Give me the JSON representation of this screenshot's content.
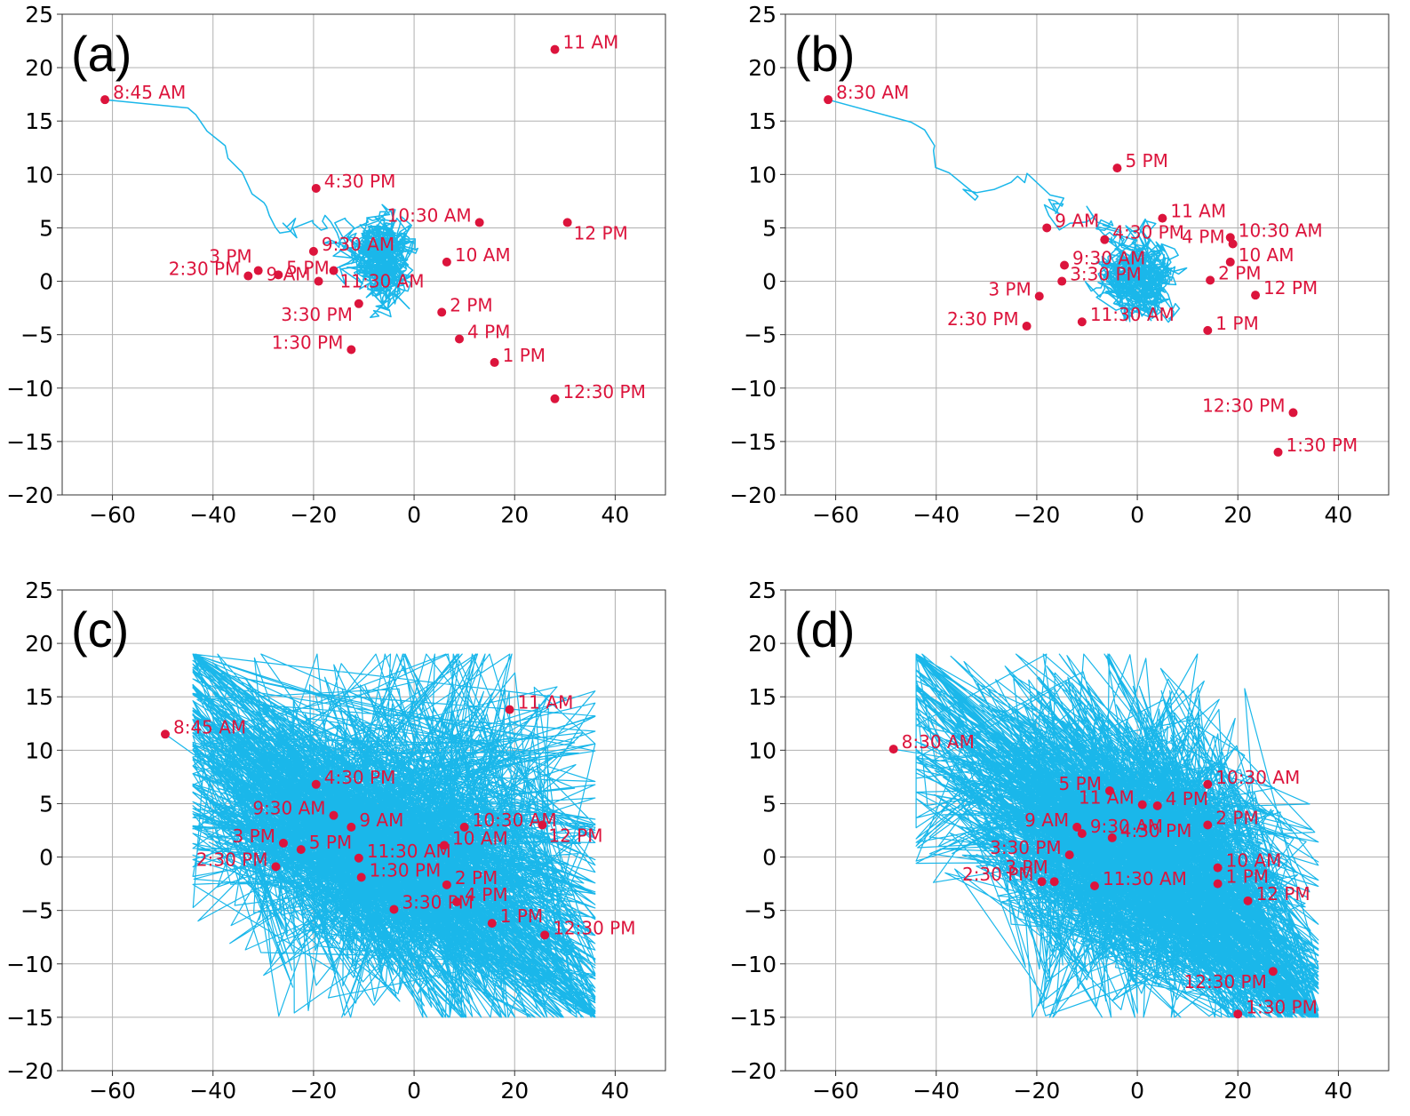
{
  "figure": {
    "colors": {
      "trajectory": "#1ab7ea",
      "points": "#dc143c"
    }
  },
  "chart_data": [
    {
      "type": "line",
      "panel": "(a)",
      "style": "smooth",
      "xlim": [
        -70,
        50
      ],
      "ylim": [
        -20,
        25
      ],
      "xticks": [
        -60,
        -40,
        -20,
        0,
        20,
        40
      ],
      "yticks": [
        -20,
        -15,
        -10,
        -5,
        0,
        5,
        10,
        15,
        20,
        25
      ],
      "xtick_labels": [
        "−60",
        "−40",
        "−20",
        "0",
        "20",
        "40"
      ],
      "ytick_labels": [
        "−20",
        "−15",
        "−10",
        "−5",
        "0",
        "5",
        "10",
        "15",
        "20",
        "25"
      ],
      "grid": true,
      "seed": 11,
      "points": [
        {
          "label": "8:45 AM",
          "x": -61.5,
          "y": 17.0,
          "pos": "right"
        },
        {
          "label": "9 AM",
          "x": -19.0,
          "y": 0.0,
          "pos": "left"
        },
        {
          "label": "9:30 AM",
          "x": -20.0,
          "y": 2.8,
          "pos": "right"
        },
        {
          "label": "10 AM",
          "x": 6.5,
          "y": 1.8,
          "pos": "right"
        },
        {
          "label": "10:30 AM",
          "x": 13.0,
          "y": 5.5,
          "pos": "left"
        },
        {
          "label": "11 AM",
          "x": 28.0,
          "y": 21.7,
          "pos": "right"
        },
        {
          "label": "11:30 AM",
          "x": -16.0,
          "y": 1.0,
          "pos": "below-right"
        },
        {
          "label": "12 PM",
          "x": 30.5,
          "y": 5.5,
          "pos": "below-right"
        },
        {
          "label": "12:30 PM",
          "x": 28.0,
          "y": -11.0,
          "pos": "right"
        },
        {
          "label": "1 PM",
          "x": 16.0,
          "y": -7.6,
          "pos": "right"
        },
        {
          "label": "1:30 PM",
          "x": -12.5,
          "y": -6.4,
          "pos": "left"
        },
        {
          "label": "2 PM",
          "x": 5.5,
          "y": -2.9,
          "pos": "right"
        },
        {
          "label": "2:30 PM",
          "x": -33.0,
          "y": 0.5,
          "pos": "left"
        },
        {
          "label": "3 PM",
          "x": -31.0,
          "y": 1.0,
          "pos": "above-left"
        },
        {
          "label": "3:30 PM",
          "x": -11.0,
          "y": -2.1,
          "pos": "below-left"
        },
        {
          "label": "4 PM",
          "x": 9.0,
          "y": -5.4,
          "pos": "right"
        },
        {
          "label": "4:30 PM",
          "x": -19.5,
          "y": 8.7,
          "pos": "right"
        },
        {
          "label": "5 PM",
          "x": -27.0,
          "y": 0.6,
          "pos": "right"
        }
      ]
    },
    {
      "type": "line",
      "panel": "(b)",
      "style": "smooth",
      "xlim": [
        -70,
        50
      ],
      "ylim": [
        -20,
        25
      ],
      "xticks": [
        -60,
        -40,
        -20,
        0,
        20,
        40
      ],
      "yticks": [
        -20,
        -15,
        -10,
        -5,
        0,
        5,
        10,
        15,
        20,
        25
      ],
      "xtick_labels": [
        "−60",
        "−40",
        "−20",
        "0",
        "20",
        "40"
      ],
      "ytick_labels": [
        "−20",
        "−15",
        "−10",
        "−5",
        "0",
        "5",
        "10",
        "15",
        "20",
        "25"
      ],
      "grid": true,
      "seed": 23,
      "points": [
        {
          "label": "8:30 AM",
          "x": -61.5,
          "y": 17.0,
          "pos": "right"
        },
        {
          "label": "9 AM",
          "x": -18.0,
          "y": 5.0,
          "pos": "right"
        },
        {
          "label": "9:30 AM",
          "x": -14.5,
          "y": 1.5,
          "pos": "right"
        },
        {
          "label": "10 AM",
          "x": 18.5,
          "y": 1.8,
          "pos": "right"
        },
        {
          "label": "10:30 AM",
          "x": 18.5,
          "y": 4.1,
          "pos": "right"
        },
        {
          "label": "11 AM",
          "x": 5.0,
          "y": 5.9,
          "pos": "right"
        },
        {
          "label": "11:30 AM",
          "x": -11.0,
          "y": -3.8,
          "pos": "right"
        },
        {
          "label": "12 PM",
          "x": 23.5,
          "y": -1.3,
          "pos": "right"
        },
        {
          "label": "12:30 PM",
          "x": 31.0,
          "y": -12.3,
          "pos": "left"
        },
        {
          "label": "1 PM",
          "x": 14.0,
          "y": -4.6,
          "pos": "right"
        },
        {
          "label": "1:30 PM",
          "x": 28.0,
          "y": -16.0,
          "pos": "right"
        },
        {
          "label": "2 PM",
          "x": 14.5,
          "y": 0.1,
          "pos": "right"
        },
        {
          "label": "2:30 PM",
          "x": -22.0,
          "y": -4.2,
          "pos": "left"
        },
        {
          "label": "3 PM",
          "x": -19.5,
          "y": -1.4,
          "pos": "left"
        },
        {
          "label": "3:30 PM",
          "x": -15.0,
          "y": 0.0,
          "pos": "right"
        },
        {
          "label": "4 PM",
          "x": 19.0,
          "y": 3.5,
          "pos": "left"
        },
        {
          "label": "4:30 PM",
          "x": -6.5,
          "y": 3.9,
          "pos": "right"
        },
        {
          "label": "5 PM",
          "x": -4.0,
          "y": 10.6,
          "pos": "right"
        }
      ]
    },
    {
      "type": "line",
      "panel": "(c)",
      "style": "zigzag",
      "xlim": [
        -70,
        50
      ],
      "ylim": [
        -20,
        25
      ],
      "xticks": [
        -60,
        -40,
        -20,
        0,
        20,
        40
      ],
      "yticks": [
        -20,
        -15,
        -10,
        -5,
        0,
        5,
        10,
        15,
        20,
        25
      ],
      "xtick_labels": [
        "−60",
        "−40",
        "−20",
        "0",
        "20",
        "40"
      ],
      "ytick_labels": [
        "−20",
        "−15",
        "−10",
        "−5",
        "0",
        "5",
        "10",
        "15",
        "20",
        "25"
      ],
      "grid": true,
      "seed": 37,
      "points": [
        {
          "label": "8:45 AM",
          "x": -49.5,
          "y": 11.5,
          "pos": "right"
        },
        {
          "label": "9 AM",
          "x": -12.5,
          "y": 2.8,
          "pos": "right"
        },
        {
          "label": "9:30 AM",
          "x": -16.0,
          "y": 3.9,
          "pos": "left"
        },
        {
          "label": "10 AM",
          "x": 6.0,
          "y": 1.1,
          "pos": "right"
        },
        {
          "label": "10:30 AM",
          "x": 10.0,
          "y": 2.8,
          "pos": "right"
        },
        {
          "label": "11 AM",
          "x": 19.0,
          "y": 13.8,
          "pos": "right"
        },
        {
          "label": "11:30 AM",
          "x": -11.0,
          "y": -0.1,
          "pos": "right"
        },
        {
          "label": "12 PM",
          "x": 25.5,
          "y": 3.0,
          "pos": "below-right"
        },
        {
          "label": "12:30 PM",
          "x": 26.0,
          "y": -7.3,
          "pos": "right"
        },
        {
          "label": "1 PM",
          "x": 15.5,
          "y": -6.2,
          "pos": "right"
        },
        {
          "label": "1:30 PM",
          "x": -10.5,
          "y": -1.9,
          "pos": "right"
        },
        {
          "label": "2 PM",
          "x": 6.5,
          "y": -2.6,
          "pos": "right"
        },
        {
          "label": "2:30 PM",
          "x": -27.5,
          "y": -0.9,
          "pos": "left"
        },
        {
          "label": "3 PM",
          "x": -26.0,
          "y": 1.3,
          "pos": "left"
        },
        {
          "label": "3:30 PM",
          "x": -4.0,
          "y": -4.9,
          "pos": "right"
        },
        {
          "label": "4 PM",
          "x": 8.5,
          "y": -4.2,
          "pos": "right"
        },
        {
          "label": "4:30 PM",
          "x": -19.5,
          "y": 6.8,
          "pos": "right"
        },
        {
          "label": "5 PM",
          "x": -22.5,
          "y": 0.7,
          "pos": "right"
        }
      ]
    },
    {
      "type": "line",
      "panel": "(d)",
      "style": "zigzag",
      "xlim": [
        -70,
        50
      ],
      "ylim": [
        -20,
        25
      ],
      "xticks": [
        -60,
        -40,
        -20,
        0,
        20,
        40
      ],
      "yticks": [
        -20,
        -15,
        -10,
        -5,
        0,
        5,
        10,
        15,
        20,
        25
      ],
      "xtick_labels": [
        "−60",
        "−40",
        "−20",
        "0",
        "20",
        "40"
      ],
      "ytick_labels": [
        "−20",
        "−15",
        "−10",
        "−5",
        "0",
        "5",
        "10",
        "15",
        "20",
        "25"
      ],
      "grid": true,
      "seed": 53,
      "points": [
        {
          "label": "8:30 AM",
          "x": -48.5,
          "y": 10.1,
          "pos": "right"
        },
        {
          "label": "9 AM",
          "x": -12.0,
          "y": 2.8,
          "pos": "left"
        },
        {
          "label": "9:30 AM",
          "x": -11.0,
          "y": 2.2,
          "pos": "right"
        },
        {
          "label": "10 AM",
          "x": 16.0,
          "y": -1.0,
          "pos": "right"
        },
        {
          "label": "10:30 AM",
          "x": 14.0,
          "y": 6.8,
          "pos": "right"
        },
        {
          "label": "11 AM",
          "x": 1.0,
          "y": 4.9,
          "pos": "left"
        },
        {
          "label": "11:30 AM",
          "x": -8.5,
          "y": -2.7,
          "pos": "right"
        },
        {
          "label": "12 PM",
          "x": 22.0,
          "y": -4.1,
          "pos": "right"
        },
        {
          "label": "12:30 PM",
          "x": 27.0,
          "y": -10.7,
          "pos": "below-left"
        },
        {
          "label": "1 PM",
          "x": 16.0,
          "y": -2.5,
          "pos": "right"
        },
        {
          "label": "1:30 PM",
          "x": 20.0,
          "y": -14.7,
          "pos": "right"
        },
        {
          "label": "2 PM",
          "x": 14.0,
          "y": 3.0,
          "pos": "right"
        },
        {
          "label": "2:30 PM",
          "x": -19.0,
          "y": -2.3,
          "pos": "left"
        },
        {
          "label": "3 PM",
          "x": -16.5,
          "y": -2.3,
          "pos": "above-left"
        },
        {
          "label": "3:30 PM",
          "x": -13.5,
          "y": 0.2,
          "pos": "left"
        },
        {
          "label": "4 PM",
          "x": 4.0,
          "y": 4.8,
          "pos": "right"
        },
        {
          "label": "4:30 PM",
          "x": -5.0,
          "y": 1.8,
          "pos": "right"
        },
        {
          "label": "5 PM",
          "x": -5.5,
          "y": 6.2,
          "pos": "left"
        }
      ]
    }
  ]
}
